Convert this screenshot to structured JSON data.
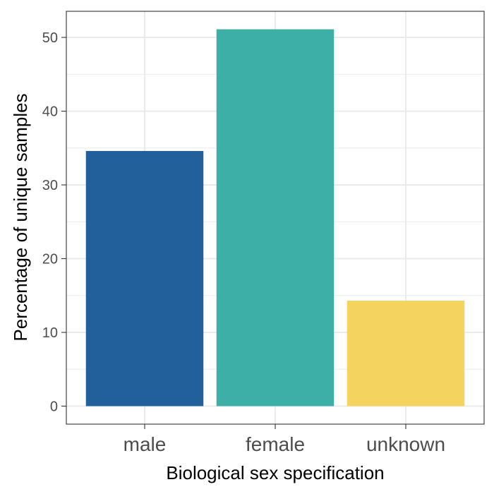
{
  "chart_data": {
    "type": "bar",
    "categories": [
      "male",
      "female",
      "unknown"
    ],
    "values": [
      34.6,
      51.1,
      14.3
    ],
    "colors": [
      "#21609A",
      "#3DAFA6",
      "#F4D45E"
    ],
    "xlabel": "Biological sex specification",
    "ylabel": "Percentage of unique samples",
    "ylim": [
      -2.5,
      53.6
    ],
    "yticks": [
      0,
      10,
      20,
      30,
      40,
      50
    ],
    "grid": true,
    "legend": "none"
  }
}
